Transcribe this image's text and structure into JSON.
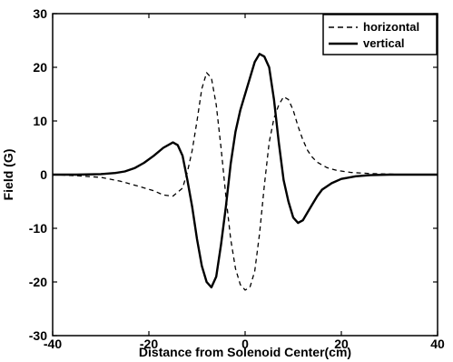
{
  "chart_data": {
    "type": "line",
    "title": "",
    "xlabel": "Distance from Solenoid Center(cm)",
    "ylabel": "Field (G)",
    "xlim": [
      -40,
      40
    ],
    "ylim": [
      -30,
      30
    ],
    "xticks": [
      -40,
      -20,
      0,
      20,
      40
    ],
    "yticks": [
      -30,
      -20,
      -10,
      0,
      10,
      20,
      30
    ],
    "grid": false,
    "legend_position": "top-right",
    "series": [
      {
        "name": "horizontal",
        "style": "dashed",
        "color": "#000000",
        "x": [
          -40,
          -35,
          -30,
          -26,
          -22,
          -19,
          -17,
          -15,
          -13,
          -12,
          -11,
          -10,
          -9,
          -8,
          -7,
          -6,
          -5,
          -4,
          -3,
          -2,
          -1,
          0,
          1,
          2,
          3,
          4,
          5,
          6,
          7,
          8,
          9,
          10,
          11,
          12,
          13,
          14,
          15,
          17,
          19,
          22,
          26,
          30,
          35,
          40
        ],
        "y": [
          0,
          -0.2,
          -0.5,
          -1.2,
          -2.2,
          -3.0,
          -3.8,
          -4.0,
          -2.5,
          0.5,
          4.5,
          10,
          16,
          19,
          18,
          13,
          5,
          -4,
          -12,
          -17.5,
          -20.5,
          -21.5,
          -21,
          -18,
          -11,
          -2,
          6,
          10.5,
          13,
          14.5,
          14,
          12,
          9,
          6.5,
          4.5,
          3.2,
          2.3,
          1.3,
          0.8,
          0.4,
          0.2,
          0.1,
          0,
          0
        ]
      },
      {
        "name": "vertical",
        "style": "solid",
        "color": "#000000",
        "x": [
          -40,
          -35,
          -30,
          -27,
          -25,
          -23,
          -21,
          -19,
          -17,
          -15,
          -14,
          -13,
          -12,
          -11,
          -10,
          -9,
          -8,
          -7,
          -6,
          -5,
          -4,
          -3,
          -2,
          -1,
          0,
          1,
          2,
          3,
          4,
          5,
          6,
          7,
          8,
          9,
          10,
          11,
          12,
          13,
          14,
          15,
          16,
          18,
          20,
          23,
          26,
          30,
          35,
          40
        ],
        "y": [
          0,
          0,
          0.1,
          0.3,
          0.6,
          1.2,
          2.2,
          3.5,
          5,
          6,
          5.5,
          3.5,
          -1,
          -6,
          -12,
          -17,
          -20,
          -21,
          -19,
          -13,
          -6,
          2,
          8,
          12,
          15,
          18,
          21,
          22.5,
          22,
          20,
          14,
          6,
          -1,
          -5,
          -8,
          -9,
          -8.5,
          -7,
          -5.5,
          -4,
          -2.8,
          -1.6,
          -0.8,
          -0.3,
          -0.1,
          0,
          0,
          0
        ]
      }
    ]
  }
}
